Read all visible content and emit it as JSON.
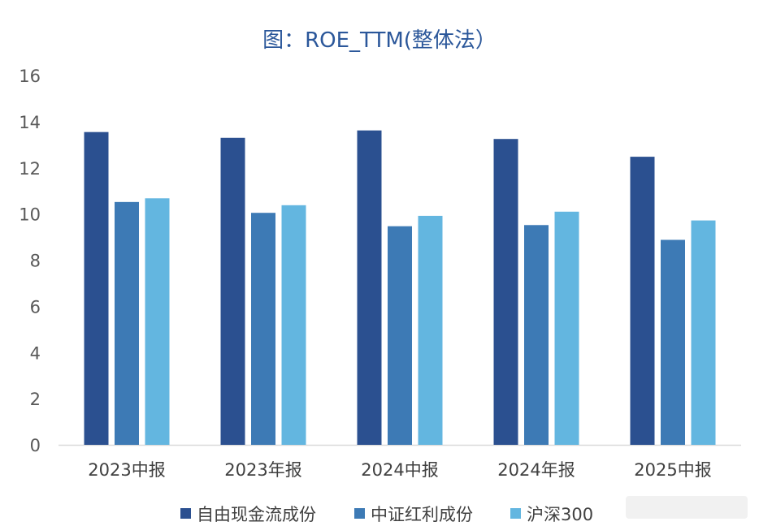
{
  "chart_data": {
    "type": "bar",
    "title": "图：ROE_TTM(整体法）",
    "categories": [
      "2023中报",
      "2023年报",
      "2024中报",
      "2024年报",
      "2025中报"
    ],
    "series": [
      {
        "name": "自由现金流成份",
        "color": "#2b5090",
        "values": [
          13.55,
          13.3,
          13.62,
          13.25,
          12.48
        ]
      },
      {
        "name": "中证红利成份",
        "color": "#3d7ab5",
        "values": [
          10.52,
          10.05,
          9.47,
          9.52,
          8.88
        ]
      },
      {
        "name": "沪深300",
        "color": "#63b6e0",
        "values": [
          10.68,
          10.38,
          9.92,
          10.1,
          9.72
        ]
      }
    ],
    "yticks": [
      0,
      2,
      4,
      6,
      8,
      10,
      12,
      14,
      16
    ],
    "ylim": [
      0,
      16
    ],
    "xlabel": "",
    "ylabel": "",
    "grid": false,
    "legend_position": "bottom"
  }
}
